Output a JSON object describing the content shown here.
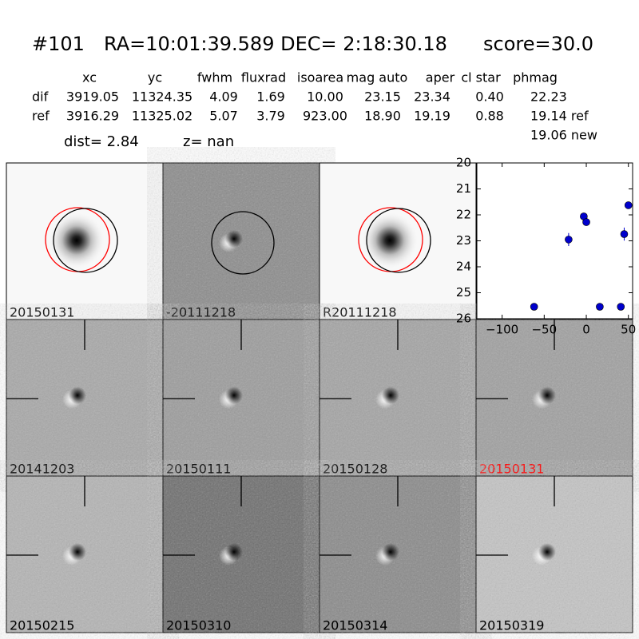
{
  "header": {
    "id": "#101",
    "coords": "RA=10:01:39.589 DEC= 2:18:30.18",
    "score": "score=30.0"
  },
  "table": {
    "columns": [
      "xc",
      "yc",
      "fwhm",
      "fluxrad",
      "isoarea",
      "mag auto",
      "aper",
      "cl star",
      "phmag"
    ],
    "rows": [
      [
        "dif",
        "3919.05",
        "11324.35",
        "4.09",
        "1.69",
        "10.00",
        "23.15",
        "23.34",
        "0.40",
        "22.23"
      ],
      [
        "ref",
        "3916.29",
        "11325.02",
        "5.07",
        "3.79",
        "923.00",
        "18.90",
        "19.19",
        "0.88",
        "19.14 ref"
      ]
    ],
    "extra": "19.06 new",
    "dist": "dist=  2.84",
    "z": "z=   nan"
  },
  "panels": [
    {
      "label": "20150131"
    },
    {
      "label": "-20111218"
    },
    {
      "label": "R20111218"
    },
    {
      "label": "20141203"
    },
    {
      "label": "20150111"
    },
    {
      "label": "20150128"
    },
    {
      "label": "20150131",
      "label_color": "red"
    },
    {
      "label": "20150215"
    },
    {
      "label": "20150310"
    },
    {
      "label": "20150314"
    },
    {
      "label": "20150319"
    }
  ],
  "chart_data": {
    "type": "scatter",
    "color": "#0000cc",
    "x": [
      -62,
      -21,
      -3,
      0,
      16,
      41,
      45,
      50
    ],
    "values": [
      25.54,
      22.95,
      22.06,
      22.28,
      25.54,
      25.54,
      22.74,
      21.63
    ],
    "errors": [
      0.05,
      0.25,
      0.07,
      0.08,
      0.05,
      0.05,
      0.25,
      0.05
    ],
    "xlim": [
      -130,
      55
    ],
    "ylim": [
      20,
      26
    ],
    "y_inverted": true,
    "xticks": [
      {
        "value": -100,
        "label": "−100"
      },
      {
        "value": -50,
        "label": "−50"
      },
      0,
      50
    ],
    "yticks": [
      20,
      21,
      22,
      23,
      24,
      25,
      26
    ]
  }
}
